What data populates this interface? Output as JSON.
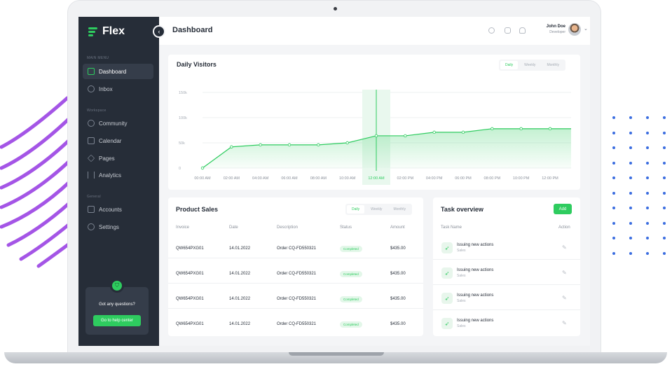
{
  "app": {
    "logo": "Flex",
    "page_title": "Dashboard"
  },
  "sidebar": {
    "sections": [
      "MAIN MENU",
      "Workspace",
      "General"
    ],
    "items": [
      {
        "label": "Dashboard",
        "icon": "chart-icon",
        "active": true
      },
      {
        "label": "Inbox",
        "icon": "inbox-icon"
      },
      {
        "label": "Community",
        "icon": "users-icon"
      },
      {
        "label": "Calendar",
        "icon": "calendar-icon"
      },
      {
        "label": "Pages",
        "icon": "layers-icon"
      },
      {
        "label": "Analytics",
        "icon": "bars-icon"
      },
      {
        "label": "Accounts",
        "icon": "user-icon"
      },
      {
        "label": "Settings",
        "icon": "gear-icon"
      }
    ],
    "help": {
      "question": "Got any questions?",
      "button": "Go to help center"
    }
  },
  "user": {
    "name": "John Doe",
    "role": "Developer"
  },
  "visitors": {
    "title": "Daily Visitors",
    "tabs": [
      "Daily",
      "Weekly",
      "Monthly"
    ],
    "selected_tab": "Daily"
  },
  "chart_data": {
    "type": "area",
    "title": "Daily Visitors",
    "x": [
      "00:00 AM",
      "02:00 AM",
      "04:00 AM",
      "06:00 AM",
      "08:00 AM",
      "10:00 AM",
      "12:00 AM",
      "02:00 PM",
      "04:00 PM",
      "06:00 PM",
      "08:00 PM",
      "10:00 PM",
      "12:00 PM"
    ],
    "values": [
      0,
      42000,
      46000,
      46000,
      46000,
      50000,
      64000,
      64000,
      71000,
      71000,
      78000,
      78000,
      78000
    ],
    "y_ticks": [
      "150k",
      "100k",
      "50k",
      "0"
    ],
    "ylim": [
      0,
      150000
    ],
    "highlight": "12:00 AM",
    "grid": true,
    "color": "#2ecc5f"
  },
  "sales": {
    "title": "Product Sales",
    "tabs": [
      "Daily",
      "Weekly",
      "Monthly"
    ],
    "columns": [
      "Invoice",
      "Date",
      "Description",
      "Status",
      "Amount"
    ],
    "rows": [
      [
        "QW654PXG01",
        "14.01.2022",
        "Order CQ-FD550321",
        "Completed",
        "$435.00"
      ],
      [
        "QW654PXG01",
        "14.01.2022",
        "Order CQ-FD550321",
        "Completed",
        "$435.00"
      ],
      [
        "QW654PXG01",
        "14.01.2022",
        "Order CQ-FD550321",
        "Completed",
        "$435.00"
      ],
      [
        "QW654PXG01",
        "14.01.2022",
        "Order CQ-FD550321",
        "Completed",
        "$435.00"
      ]
    ]
  },
  "tasks": {
    "title": "Task overview",
    "add": "Add",
    "columns": [
      "Task Name",
      "Action"
    ],
    "items": [
      {
        "name": "Issuing new actions",
        "sub": "Sales"
      },
      {
        "name": "Issuing new actions",
        "sub": "Sales"
      },
      {
        "name": "Issuing new actions",
        "sub": "Sales"
      },
      {
        "name": "Issuing new actions",
        "sub": "Sales"
      }
    ]
  },
  "colors": {
    "accent": "#2ecc5f",
    "sidebar": "#262d38",
    "dots": "#3b6de0",
    "swoosh": "#9b4fe0"
  }
}
